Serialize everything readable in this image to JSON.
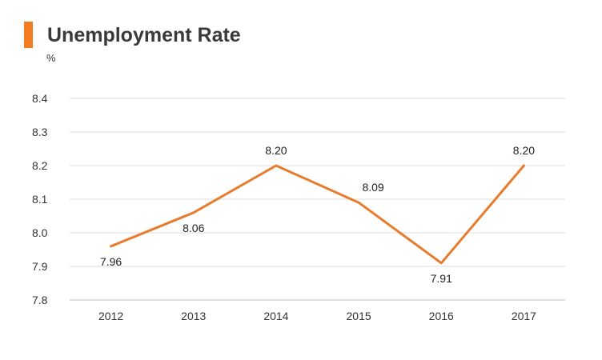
{
  "header": {
    "title": "Unemployment Rate",
    "unit": "%",
    "accent_color": "#f47c20"
  },
  "chart_data": {
    "type": "line",
    "title": "Unemployment Rate",
    "ylabel": "%",
    "xlabel": "",
    "categories": [
      "2012",
      "2013",
      "2014",
      "2015",
      "2016",
      "2017"
    ],
    "series": [
      {
        "values": [
          7.96,
          8.06,
          8.2,
          8.09,
          7.91,
          8.2
        ],
        "color": "#e87b2c"
      }
    ],
    "data_labels": [
      "7.96",
      "8.06",
      "8.20",
      "8.09",
      "7.91",
      "8.20"
    ],
    "ylim": [
      7.8,
      8.4
    ],
    "yticks": [
      7.8,
      7.9,
      8.0,
      8.1,
      8.2,
      8.3,
      8.4
    ],
    "ytick_labels": [
      "7.8",
      "7.9",
      "8.0",
      "8.1",
      "8.2",
      "8.3",
      "8.4"
    ],
    "grid": true,
    "legend": "none"
  }
}
